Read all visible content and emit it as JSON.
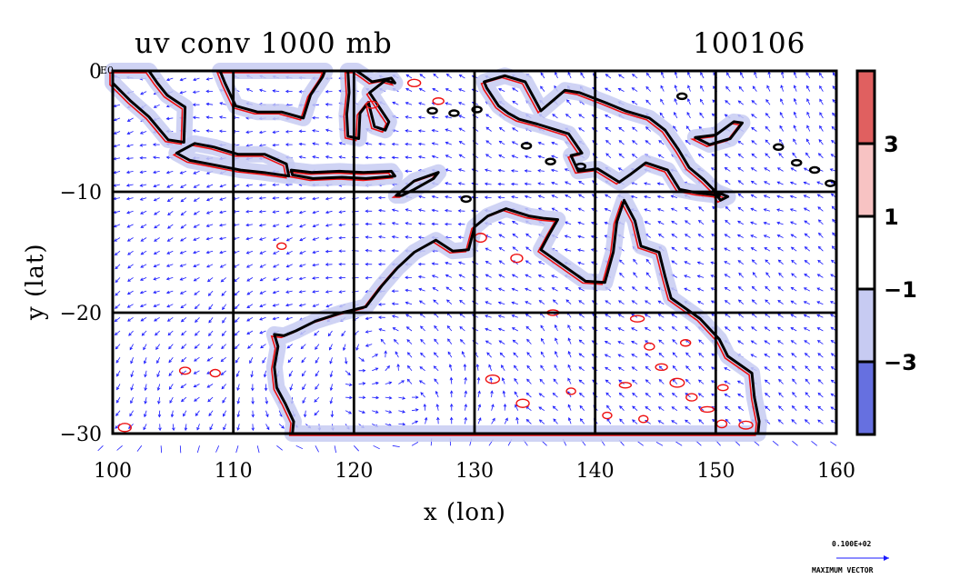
{
  "chart_data": {
    "type": "vector_contour_map",
    "title": "uv conv 1000 mb",
    "date_label": "100106",
    "xlabel": "x (lon)",
    "ylabel": "y (lat)",
    "xlim": [
      100,
      160
    ],
    "ylim": [
      -30,
      0
    ],
    "x_ticks": [
      100,
      110,
      120,
      130,
      140,
      150,
      160
    ],
    "y_ticks": [
      0,
      -10,
      -20,
      -30
    ],
    "x_tick_labels": [
      "100",
      "110",
      "120",
      "130",
      "140",
      "150",
      "160"
    ],
    "y_tick_labels": [
      "0",
      "−10",
      "−20",
      "−30"
    ],
    "y_top_extra_label": "E0",
    "grid": true,
    "colorbar": {
      "levels": [
        {
          "label": "",
          "color": "#e06060"
        },
        {
          "label": "3",
          "color": "#f7c3c3"
        },
        {
          "label": "1",
          "color": "#ffffff"
        },
        {
          "label": "−1",
          "color": "#c7cbf2"
        },
        {
          "label": "−3",
          "color": "#6670e0"
        }
      ],
      "tick_labels": [
        "3",
        "1",
        "−1",
        "−3"
      ]
    },
    "reference_vector": {
      "value_label": "0.100E+02",
      "caption": "MAXIMUM VECTOR"
    },
    "colors": {
      "vectors": "#1a1aff",
      "positive_contour": "#ee1111",
      "negative_shade": "#c7cbf2",
      "coastline": "#000000"
    }
  }
}
